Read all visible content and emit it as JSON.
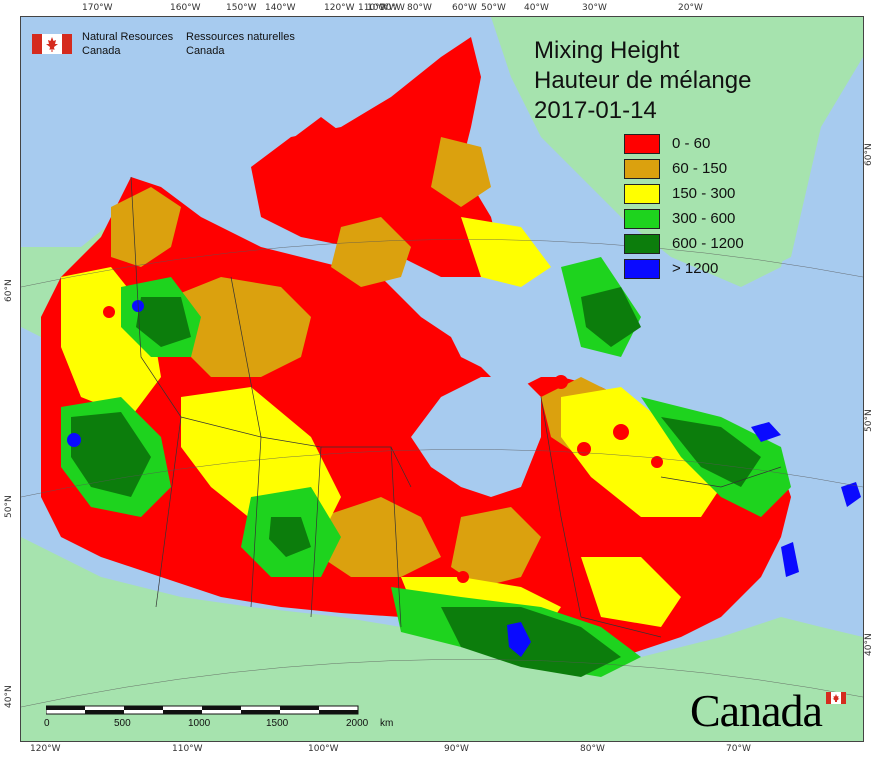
{
  "title": {
    "line1": "Mixing Height",
    "line2": "Hauteur de mélange",
    "date": "2017-01-14"
  },
  "organization": {
    "en_line1": "Natural Resources",
    "en_line2": "Canada",
    "fr_line1": "Ressources naturelles",
    "fr_line2": "Canada"
  },
  "wordmark": "Canada",
  "legend": [
    {
      "label": "0 - 60",
      "color": "#ff0000"
    },
    {
      "label": "60 - 150",
      "color": "#dba10e"
    },
    {
      "label": "150 - 300",
      "color": "#ffff00"
    },
    {
      "label": "300 - 600",
      "color": "#1ed31e"
    },
    {
      "label": "600 - 1200",
      "color": "#0c7d0c"
    },
    {
      "label": "> 1200",
      "color": "#0a0aff"
    }
  ],
  "scale": {
    "ticks": [
      "0",
      "500",
      "1000",
      "1500",
      "2000"
    ],
    "unit": "km"
  },
  "graticule": {
    "top": [
      "170°W",
      "160°W",
      "150°W",
      "140°W",
      "120°W",
      "110°W",
      "100°W",
      "90°W",
      "80°W",
      "60°W",
      "50°W",
      "40°W",
      "30°W",
      "20°W"
    ],
    "bottom": [
      "120°W",
      "110°W",
      "100°W",
      "90°W",
      "80°W",
      "70°W"
    ],
    "left": [
      "60°N",
      "50°N",
      "40°N"
    ],
    "right": [
      "60°N",
      "50°N",
      "40°N"
    ]
  },
  "colors": {
    "ocean": "#a7cbef",
    "foreign_land": "#a6e3ae",
    "border": "#333333"
  }
}
